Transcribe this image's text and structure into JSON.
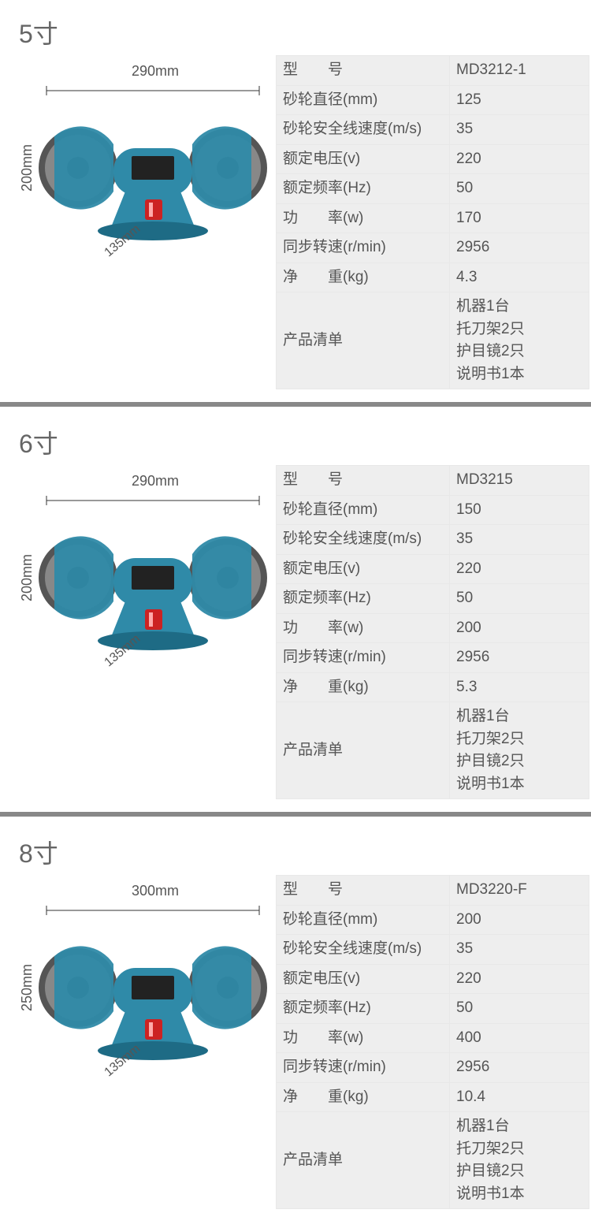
{
  "products": [
    {
      "title": "5寸",
      "dimensions": {
        "width": "290mm",
        "height": "200mm",
        "depth": "135mm"
      },
      "grinder_color": "#2f8aa8",
      "spec_rows": [
        {
          "label": "型　　号",
          "value": "MD3212-1"
        },
        {
          "label": "砂轮直径(mm)",
          "value": "125"
        },
        {
          "label": "砂轮安全线速度(m/s)",
          "value": "35"
        },
        {
          "label": "额定电压(v)",
          "value": "220"
        },
        {
          "label": "额定频率(Hz)",
          "value": "50"
        },
        {
          "label": "功　　率(w)",
          "value": "170"
        },
        {
          "label": "同步转速(r/min)",
          "value": "2956"
        },
        {
          "label": "净　　重(kg)",
          "value": "4.3"
        },
        {
          "label": "产品清单",
          "value": "机器1台\n托刀架2只\n护目镜2只\n说明书1本"
        }
      ]
    },
    {
      "title": "6寸",
      "dimensions": {
        "width": "290mm",
        "height": "200mm",
        "depth": "135mm"
      },
      "grinder_color": "#2f8aa8",
      "spec_rows": [
        {
          "label": "型　　号",
          "value": "MD3215"
        },
        {
          "label": "砂轮直径(mm)",
          "value": "150"
        },
        {
          "label": "砂轮安全线速度(m/s)",
          "value": "35"
        },
        {
          "label": "额定电压(v)",
          "value": "220"
        },
        {
          "label": "额定频率(Hz)",
          "value": "50"
        },
        {
          "label": "功　　率(w)",
          "value": "200"
        },
        {
          "label": "同步转速(r/min)",
          "value": "2956"
        },
        {
          "label": "净　　重(kg)",
          "value": "5.3"
        },
        {
          "label": "产品清单",
          "value": "机器1台\n托刀架2只\n护目镜2只\n说明书1本"
        }
      ]
    },
    {
      "title": "8寸",
      "dimensions": {
        "width": "300mm",
        "height": "250mm",
        "depth": "135mm"
      },
      "grinder_color": "#2f8aa8",
      "spec_rows": [
        {
          "label": "型　　号",
          "value": "MD3220-F"
        },
        {
          "label": "砂轮直径(mm)",
          "value": "200"
        },
        {
          "label": "砂轮安全线速度(m/s)",
          "value": "35"
        },
        {
          "label": "额定电压(v)",
          "value": "220"
        },
        {
          "label": "额定频率(Hz)",
          "value": "50"
        },
        {
          "label": "功　　率(w)",
          "value": "400"
        },
        {
          "label": "同步转速(r/min)",
          "value": "2956"
        },
        {
          "label": "净　　重(kg)",
          "value": "10.4"
        },
        {
          "label": "产品清单",
          "value": "机器1台\n托刀架2只\n护目镜2只\n说明书1本"
        }
      ]
    }
  ],
  "style": {
    "table_bg": "#eeeeee",
    "table_border": "#e8e8e8",
    "text_color": "#555555",
    "title_color": "#666666",
    "divider_color": "#888888",
    "title_fontsize": 32,
    "cell_fontsize": 19
  }
}
